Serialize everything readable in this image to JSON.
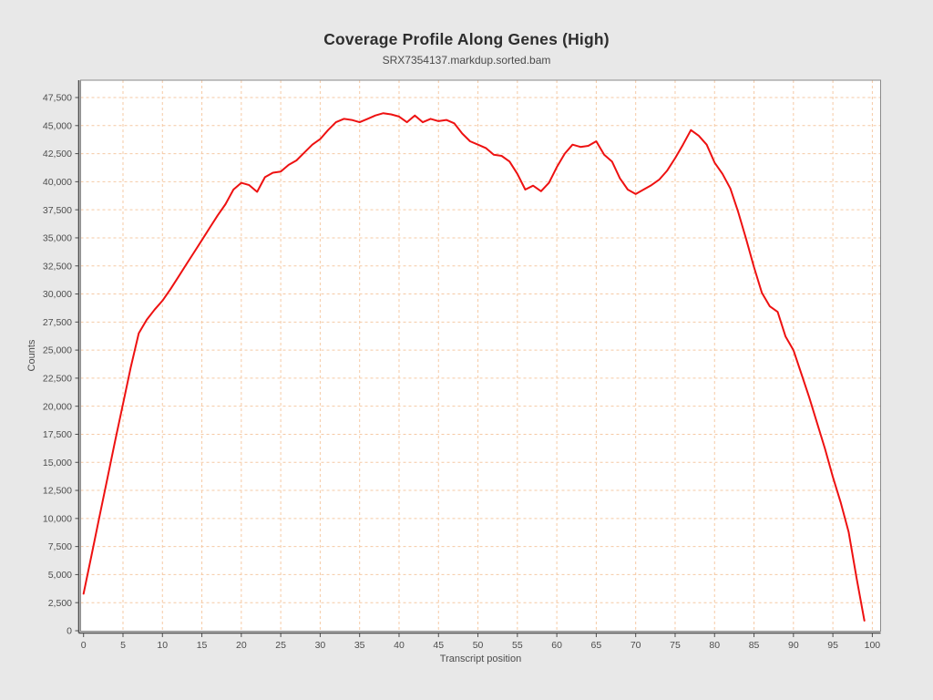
{
  "title": "Coverage Profile Along Genes (High)",
  "subtitle": "SRX7354137.markdup.sorted.bam",
  "chart_data": {
    "type": "line",
    "title": "Coverage Profile Along Genes (High)",
    "subtitle": "SRX7354137.markdup.sorted.bam",
    "xlabel": "Transcript position",
    "ylabel": "Counts",
    "xlim": [
      -0.4,
      101
    ],
    "ylim": [
      0,
      49050
    ],
    "grid": true,
    "legend": "none",
    "x_ticks": [
      0,
      5,
      10,
      15,
      20,
      25,
      30,
      35,
      40,
      45,
      50,
      55,
      60,
      65,
      70,
      75,
      80,
      85,
      90,
      95,
      100
    ],
    "y_ticks": [
      0,
      2500,
      5000,
      7500,
      10000,
      12500,
      15000,
      17500,
      20000,
      22500,
      25000,
      27500,
      30000,
      32500,
      35000,
      37500,
      40000,
      42500,
      45000,
      47500
    ],
    "colors": {
      "line": "#ee1111",
      "grid": "#f5c9a4",
      "plot_background": "#ffffff",
      "page_background": "#e8e8e8",
      "axis": "#4d4d4d",
      "border": "#8a8a8a"
    },
    "series": [
      {
        "name": "SRX7354137.markdup.sorted.bam",
        "x": [
          0,
          1,
          2,
          3,
          4,
          5,
          6,
          7,
          8,
          9,
          10,
          11,
          12,
          13,
          14,
          15,
          16,
          17,
          18,
          19,
          20,
          21,
          22,
          23,
          24,
          25,
          26,
          27,
          28,
          29,
          30,
          31,
          32,
          33,
          34,
          35,
          36,
          37,
          38,
          39,
          40,
          41,
          42,
          43,
          44,
          45,
          46,
          47,
          48,
          49,
          50,
          51,
          52,
          53,
          54,
          55,
          56,
          57,
          58,
          59,
          60,
          61,
          62,
          63,
          64,
          65,
          66,
          67,
          68,
          69,
          70,
          71,
          72,
          73,
          74,
          75,
          76,
          77,
          78,
          79,
          80,
          81,
          82,
          83,
          84,
          85,
          86,
          87,
          88,
          89,
          90,
          91,
          92,
          93,
          94,
          95,
          96,
          97,
          98,
          99
        ],
        "y": [
          3300,
          6700,
          10100,
          13500,
          16900,
          20200,
          23500,
          26500,
          27700,
          28600,
          29400,
          30400,
          31500,
          32600,
          33700,
          34800,
          35900,
          37000,
          38000,
          39300,
          39900,
          39700,
          39100,
          40400,
          40800,
          40900,
          41500,
          41900,
          42600,
          43300,
          43800,
          44600,
          45300,
          45600,
          45500,
          45300,
          45600,
          45900,
          46100,
          46000,
          45800,
          45300,
          45900,
          45300,
          45600,
          45400,
          45500,
          45200,
          44300,
          43600,
          43300,
          43000,
          42400,
          42300,
          41800,
          40700,
          39300,
          39650,
          39150,
          39900,
          41300,
          42500,
          43300,
          43100,
          43200,
          43600,
          42400,
          41800,
          40300,
          39300,
          38900,
          39300,
          39700,
          40200,
          41000,
          42100,
          43300,
          44600,
          44100,
          43300,
          41700,
          40700,
          39400,
          37300,
          34900,
          32400,
          30100,
          28900,
          28400,
          26200,
          25000,
          22900,
          20800,
          18500,
          16200,
          13700,
          11400,
          8800,
          4700,
          900
        ]
      }
    ]
  }
}
